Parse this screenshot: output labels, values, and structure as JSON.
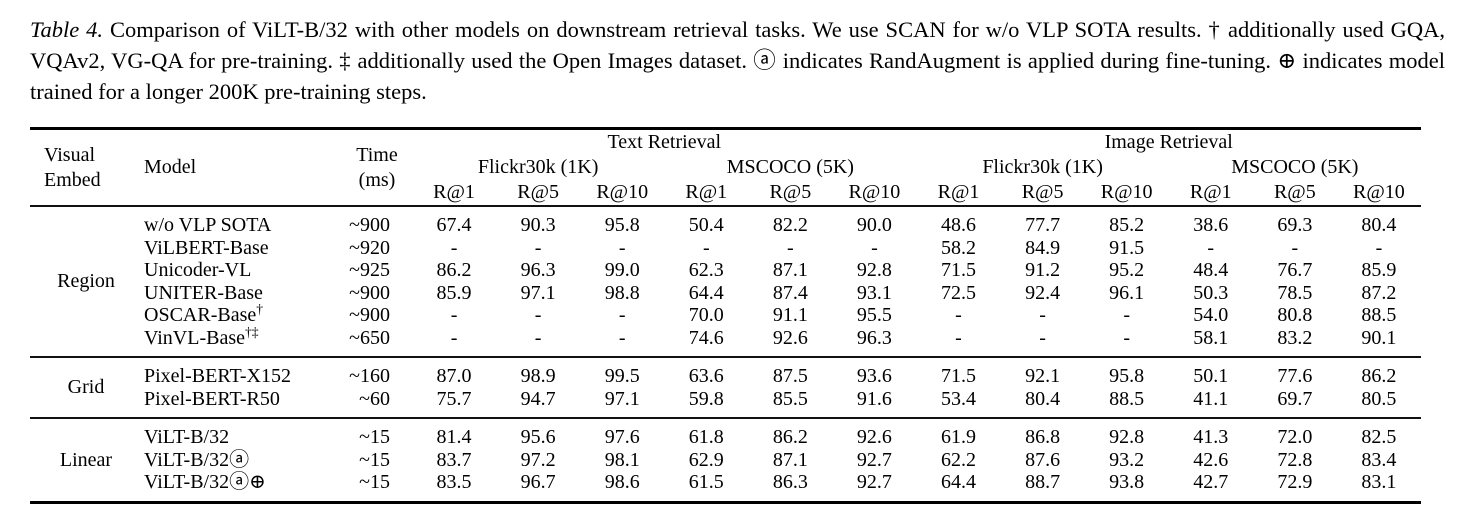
{
  "caption": {
    "label": "Table 4.",
    "text": "Comparison of ViLT-B/32 with other models on downstream retrieval tasks.  We use SCAN for w/o VLP SOTA results.  † additionally used GQA, VQAv2, VG-QA for pre-training. ‡ additionally used the Open Images dataset. ⓐ indicates RandAugment is applied during fine-tuning. ⊕ indicates model trained for a longer 200K pre-training steps."
  },
  "table": {
    "header": {
      "visual_embed": [
        "Visual",
        "Embed"
      ],
      "model": "Model",
      "time": [
        "Time",
        "(ms)"
      ],
      "groups": [
        {
          "label": "Text Retrieval",
          "subgroups": [
            "Flickr30k (1K)",
            "MSCOCO (5K)"
          ]
        },
        {
          "label": "Image Retrieval",
          "subgroups": [
            "Flickr30k (1K)",
            "MSCOCO (5K)"
          ]
        }
      ],
      "metrics": [
        "R@1",
        "R@5",
        "R@10"
      ]
    },
    "groups": [
      {
        "embed": "Region",
        "rows": [
          {
            "model": "w/o VLP SOTA",
            "sup": "",
            "time": "~900",
            "values": [
              "67.4",
              "90.3",
              "95.8",
              "50.4",
              "82.2",
              "90.0",
              "48.6",
              "77.7",
              "85.2",
              "38.6",
              "69.3",
              "80.4"
            ]
          },
          {
            "model": "ViLBERT-Base",
            "sup": "",
            "time": "~920",
            "values": [
              "-",
              "-",
              "-",
              "-",
              "-",
              "-",
              "58.2",
              "84.9",
              "91.5",
              "-",
              "-",
              "-"
            ]
          },
          {
            "model": "Unicoder-VL",
            "sup": "",
            "time": "~925",
            "values": [
              "86.2",
              "96.3",
              "99.0",
              "62.3",
              "87.1",
              "92.8",
              "71.5",
              "91.2",
              "95.2",
              "48.4",
              "76.7",
              "85.9"
            ]
          },
          {
            "model": "UNITER-Base",
            "sup": "",
            "time": "~900",
            "values": [
              "85.9",
              "97.1",
              "98.8",
              "64.4",
              "87.4",
              "93.1",
              "72.5",
              "92.4",
              "96.1",
              "50.3",
              "78.5",
              "87.2"
            ]
          },
          {
            "model": "OSCAR-Base",
            "sup": "†",
            "time": "~900",
            "values": [
              "-",
              "-",
              "-",
              "70.0",
              "91.1",
              "95.5",
              "-",
              "-",
              "-",
              "54.0",
              "80.8",
              "88.5"
            ]
          },
          {
            "model": "VinVL-Base",
            "sup": "†‡",
            "time": "~650",
            "values": [
              "-",
              "-",
              "-",
              "74.6",
              "92.6",
              "96.3",
              "-",
              "-",
              "-",
              "58.1",
              "83.2",
              "90.1"
            ]
          }
        ]
      },
      {
        "embed": "Grid",
        "rows": [
          {
            "model": "Pixel-BERT-X152",
            "sup": "",
            "time": "~160",
            "values": [
              "87.0",
              "98.9",
              "99.5",
              "63.6",
              "87.5",
              "93.6",
              "71.5",
              "92.1",
              "95.8",
              "50.1",
              "77.6",
              "86.2"
            ]
          },
          {
            "model": "Pixel-BERT-R50",
            "sup": "",
            "time": "~60",
            "values": [
              "75.7",
              "94.7",
              "97.1",
              "59.8",
              "85.5",
              "91.6",
              "53.4",
              "80.4",
              "88.5",
              "41.1",
              "69.7",
              "80.5"
            ]
          }
        ]
      },
      {
        "embed": "Linear",
        "rows": [
          {
            "model": "ViLT-B/32",
            "sup": "",
            "time": "~15",
            "values": [
              "81.4",
              "95.6",
              "97.6",
              "61.8",
              "86.2",
              "92.6",
              "61.9",
              "86.8",
              "92.8",
              "41.3",
              "72.0",
              "82.5"
            ]
          },
          {
            "model": "ViLT-B/32ⓐ",
            "sup": "",
            "time": "~15",
            "values": [
              "83.7",
              "97.2",
              "98.1",
              "62.9",
              "87.1",
              "92.7",
              "62.2",
              "87.6",
              "93.2",
              "42.6",
              "72.8",
              "83.4"
            ]
          },
          {
            "model": "ViLT-B/32ⓐ⊕",
            "sup": "",
            "time": "~15",
            "values": [
              "83.5",
              "96.7",
              "98.6",
              "61.5",
              "86.3",
              "92.7",
              "64.4",
              "88.7",
              "93.8",
              "42.7",
              "72.9",
              "83.1"
            ]
          }
        ]
      }
    ]
  }
}
